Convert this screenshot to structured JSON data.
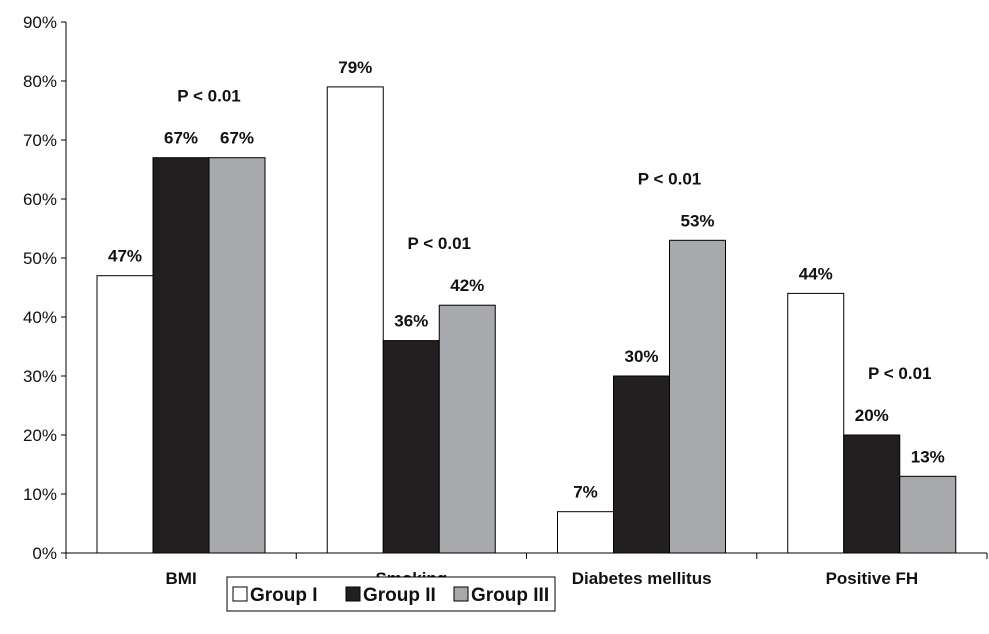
{
  "chart_data": {
    "type": "bar",
    "categories": [
      "BMI",
      "Smoking",
      "Diabetes mellitus",
      "Positive FH"
    ],
    "series": [
      {
        "name": "Group I",
        "values": [
          47,
          79,
          7,
          44
        ],
        "color": "#ffffff",
        "labels": [
          "47%",
          "79%",
          "7%",
          "44%"
        ]
      },
      {
        "name": "Group II",
        "values": [
          67,
          36,
          30,
          20
        ],
        "color": "#231f20",
        "labels": [
          "67%",
          "36%",
          "30%",
          "20%"
        ]
      },
      {
        "name": "Group III",
        "values": [
          67,
          42,
          53,
          13
        ],
        "color": "#a7a9ac",
        "labels": [
          "67%",
          "42%",
          "53%",
          "13%"
        ]
      }
    ],
    "annotations": [
      "P < 0.01",
      "P < 0.01",
      "P < 0.01",
      "P < 0.01"
    ],
    "yticks": [
      "0%",
      "10%",
      "20%",
      "30%",
      "40%",
      "50%",
      "60%",
      "70%",
      "80%",
      "90%"
    ],
    "ylim": [
      0,
      90
    ],
    "grid": false,
    "legend": "bottom",
    "title": "",
    "xlabel": "",
    "ylabel": ""
  }
}
